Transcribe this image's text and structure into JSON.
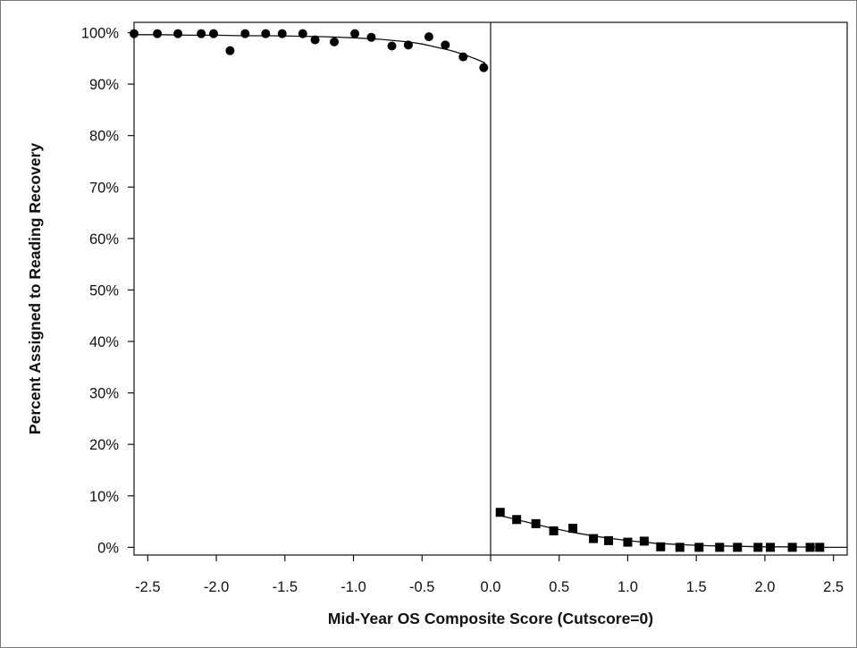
{
  "chart_data": {
    "type": "scatter",
    "title": "",
    "xlabel": "Mid-Year OS Composite Score (Cutscore=0)",
    "ylabel": "Percent Assigned to Reading Recovery",
    "xlim": [
      -2.6,
      2.6
    ],
    "ylim": [
      -1.5,
      102
    ],
    "x_ticks": [
      -2.5,
      -2.0,
      -1.5,
      -1.0,
      -0.5,
      0.0,
      0.5,
      1.0,
      1.5,
      2.0,
      2.5
    ],
    "x_tick_labels": [
      "-2.5",
      "-2.0",
      "-1.5",
      "-1.0",
      "-0.5",
      "0.0",
      "0.5",
      "1.0",
      "1.5",
      "2.0",
      "2.5"
    ],
    "y_ticks": [
      0,
      10,
      20,
      30,
      40,
      50,
      60,
      70,
      80,
      90,
      100
    ],
    "y_tick_labels": [
      "0%",
      "10%",
      "20%",
      "30%",
      "40%",
      "50%",
      "60%",
      "70%",
      "80%",
      "90%",
      "100%"
    ],
    "cutscore": 0.0,
    "grid": false,
    "series": [
      {
        "marker": "circle",
        "x": [
          -2.6,
          -2.43,
          -2.28,
          -2.11,
          -2.02,
          -1.9,
          -1.79,
          -1.64,
          -1.52,
          -1.37,
          -1.28,
          -1.14,
          -0.99,
          -0.87,
          -0.72,
          -0.6,
          -0.45,
          -0.33,
          -0.2,
          -0.05
        ],
        "y": [
          99.8,
          99.8,
          99.8,
          99.8,
          99.8,
          96.5,
          99.8,
          99.8,
          99.8,
          99.8,
          98.6,
          98.2,
          99.8,
          99.1,
          97.4,
          97.6,
          99.2,
          97.6,
          95.3,
          93.2
        ]
      },
      {
        "marker": "square",
        "x": [
          0.07,
          0.19,
          0.33,
          0.46,
          0.6,
          0.75,
          0.86,
          1.0,
          1.12,
          1.24,
          1.38,
          1.52,
          1.67,
          1.8,
          1.95,
          2.04,
          2.2,
          2.33,
          2.4
        ],
        "y": [
          6.8,
          5.4,
          4.6,
          3.2,
          3.7,
          1.7,
          1.3,
          1.0,
          1.2,
          0.1,
          0.0,
          0.0,
          0.0,
          0.0,
          0.0,
          0.0,
          0.0,
          0.0,
          0.0
        ]
      }
    ],
    "fit_lines": [
      {
        "x": [
          -2.6,
          -2.4,
          -2.2,
          -2.0,
          -1.8,
          -1.6,
          -1.4,
          -1.2,
          -1.0,
          -0.8,
          -0.6,
          -0.5,
          -0.4,
          -0.3,
          -0.2,
          -0.1,
          -0.04
        ],
        "y": [
          99.6,
          99.6,
          99.5,
          99.5,
          99.4,
          99.4,
          99.3,
          99.2,
          99.0,
          98.7,
          98.2,
          97.8,
          97.2,
          96.6,
          95.8,
          94.8,
          94.1
        ]
      },
      {
        "x": [
          0.05,
          0.2,
          0.4,
          0.6,
          0.8,
          1.0,
          1.2,
          1.4,
          1.6,
          1.8,
          2.0,
          2.2,
          2.4,
          2.6
        ],
        "y": [
          6.3,
          5.3,
          4.0,
          2.9,
          2.0,
          1.3,
          0.8,
          0.5,
          0.3,
          0.2,
          0.1,
          0.1,
          0.0,
          0.0
        ]
      }
    ]
  }
}
